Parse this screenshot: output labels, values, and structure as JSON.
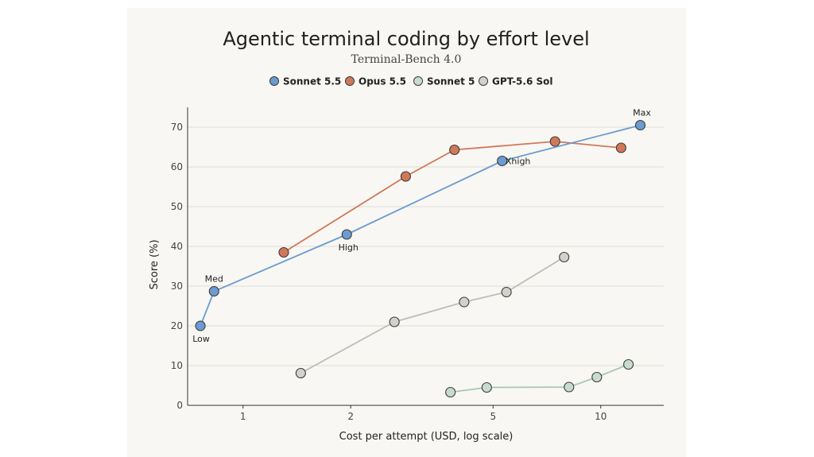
{
  "colors": {
    "sonnet55": "#6b9bd0",
    "opus55": "#d0785a",
    "sonnet5": "#c7dccf",
    "gpt56": "#d2d1cb",
    "grid": "#dedcd6",
    "axis": "#333333",
    "text": "#222222",
    "background": "#f8f7f3"
  },
  "chart_data": {
    "type": "line",
    "title": "Agentic terminal coding by effort level",
    "subtitle": "Terminal-Bench 4.0",
    "xlabel": "Cost per attempt (USD, log scale)",
    "ylabel": "Score (%)",
    "x_scale": "log",
    "xlim": [
      0.7,
      15
    ],
    "ylim": [
      0,
      75
    ],
    "x_ticks": [
      1,
      2,
      5,
      10
    ],
    "y_ticks": [
      0,
      10,
      20,
      30,
      40,
      50,
      60,
      70
    ],
    "grid": "horizontal",
    "legend_position": "top",
    "series": [
      {
        "name": "Sonnet 5.5",
        "color_key": "sonnet55",
        "points": [
          {
            "x": 0.76,
            "y": 20,
            "label": "Low"
          },
          {
            "x": 0.83,
            "y": 28.7,
            "label": "Med"
          },
          {
            "x": 1.95,
            "y": 43,
            "label": "High"
          },
          {
            "x": 5.3,
            "y": 61.5,
            "label": "Xhigh"
          },
          {
            "x": 12.9,
            "y": 70.5,
            "label": "Max"
          }
        ]
      },
      {
        "name": "Opus 5.5",
        "color_key": "opus55",
        "points": [
          {
            "x": 1.3,
            "y": 38.5
          },
          {
            "x": 2.85,
            "y": 57.6
          },
          {
            "x": 3.9,
            "y": 64.3
          },
          {
            "x": 7.45,
            "y": 66.4
          },
          {
            "x": 11.4,
            "y": 64.8
          }
        ]
      },
      {
        "name": "Sonnet 5",
        "color_key": "sonnet5",
        "points": [
          {
            "x": 3.8,
            "y": 3.3
          },
          {
            "x": 4.8,
            "y": 4.5
          },
          {
            "x": 8.15,
            "y": 4.6
          },
          {
            "x": 9.75,
            "y": 7.1
          },
          {
            "x": 11.95,
            "y": 10.3
          }
        ]
      },
      {
        "name": "GPT-5.6 Sol",
        "color_key": "gpt56",
        "points": [
          {
            "x": 1.45,
            "y": 8.1
          },
          {
            "x": 2.65,
            "y": 21
          },
          {
            "x": 4.15,
            "y": 26
          },
          {
            "x": 5.45,
            "y": 28.5
          },
          {
            "x": 7.9,
            "y": 37.3
          }
        ]
      }
    ]
  }
}
